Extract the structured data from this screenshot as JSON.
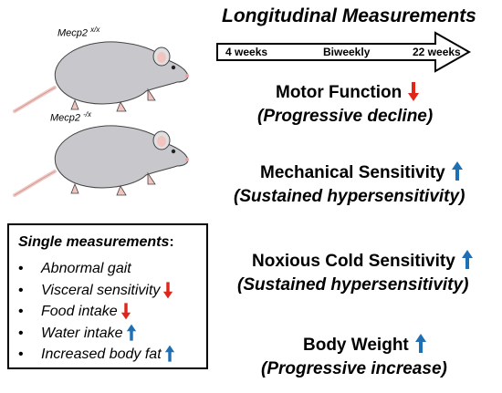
{
  "mice": [
    {
      "gene": "Mecp2",
      "genotype": "x/x"
    },
    {
      "gene": "Mecp2",
      "genotype": "-/x"
    }
  ],
  "title": "Longitudinal Measurements",
  "timeline": {
    "start": "4 weeks",
    "interval": "Biweekly",
    "end": "22 weeks"
  },
  "measures": [
    {
      "name": "Motor Function",
      "trend": "Progressive decline",
      "direction": "down"
    },
    {
      "name": "Mechanical Sensitivity",
      "trend": "Sustained hypersensitivity",
      "direction": "up"
    },
    {
      "name": "Noxious Cold Sensitivity",
      "trend": "Sustained hypersensitivity",
      "direction": "up"
    },
    {
      "name": "Body Weight",
      "trend": "Progressive increase",
      "direction": "up"
    }
  ],
  "single": {
    "title": "Single measurements",
    "items": [
      {
        "text": "Abnormal gait",
        "direction": ""
      },
      {
        "text": "Visceral sensitivity",
        "direction": "down"
      },
      {
        "text": "Food intake",
        "direction": "down"
      },
      {
        "text": "Water intake",
        "direction": "up"
      },
      {
        "text": "Increased body fat",
        "direction": "up"
      }
    ]
  },
  "colors": {
    "up": "#1f6fb5",
    "down": "#e0251b",
    "rat_body": "#c8c8cc",
    "rat_tail": "#f2c4c0"
  }
}
